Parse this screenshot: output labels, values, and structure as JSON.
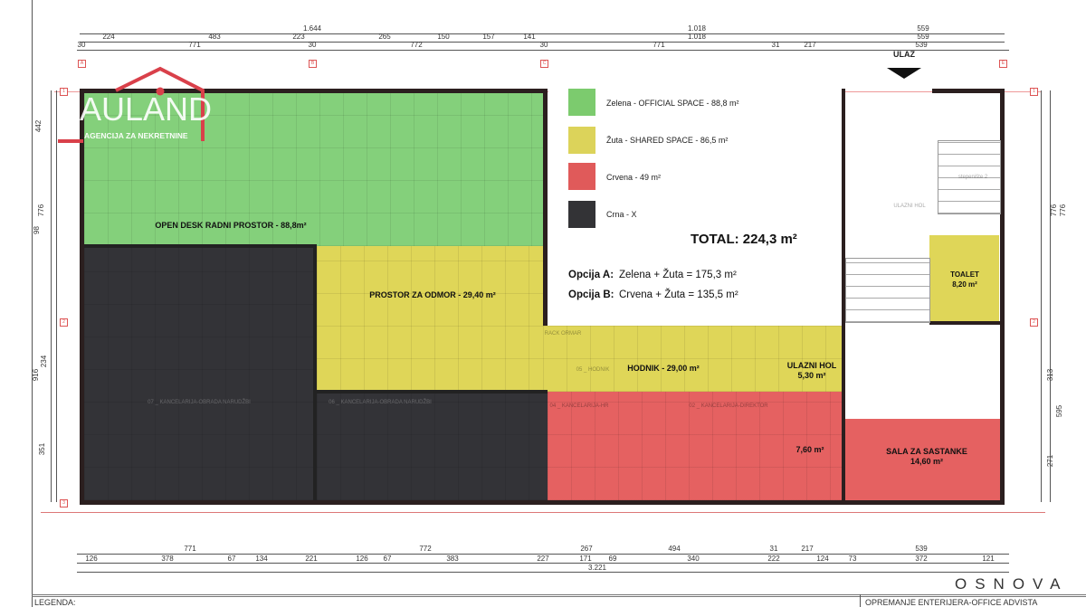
{
  "logo": {
    "name": "AULAND",
    "tagline": "AGENCIJA ZA NEKRETNINE"
  },
  "entrance": {
    "label": "ULAZ"
  },
  "legend": {
    "items": [
      {
        "color": "#7ccb6e",
        "label": "Zelena - OFFICIAL SPACE - 88,8 m²"
      },
      {
        "color": "#dcd35a",
        "label": "Žuta - SHARED SPACE - 86,5 m²"
      },
      {
        "color": "#e05a5a",
        "label": "Crvena - 49 m²"
      },
      {
        "color": "#333336",
        "label": "Crna - X"
      }
    ],
    "total": "TOTAL: 224,3 m²",
    "options": [
      {
        "name": "Opcija A:",
        "formula": "Zelena + Žuta = 175,3 m²"
      },
      {
        "name": "Opcija B:",
        "formula": "Crvena + Žuta = 135,5 m²"
      }
    ]
  },
  "rooms": {
    "open_desk": "OPEN DESK RADNI PROSTOR - 88,8m²",
    "odmor": "PROSTOR ZA ODMOR - 29,40 m²",
    "hodnik": "HODNIK - 29,00 m²",
    "ulazni_hol": "ULAZNI HOL",
    "ulazni_hol_area": "5,30 m²",
    "room_760": "7,60 m²",
    "sala": "SALA ZA SASTANKE",
    "sala_area": "14,60 m²",
    "toalet": "TOALET",
    "toalet_area": "8,20 m²"
  },
  "faint_labels": {
    "k07": "07 _ KANCELARIJA-OBRADA NARUDŽBI",
    "k06": "06 _ KANCELARIJA-OBRADA NARUDŽBI",
    "k04": "04 _ KANCELARIJA-HR",
    "k02": "02 _ KANCELARIJA-DIREKTOR",
    "hodnik": "05 _ HODNIK",
    "hol": "ULAZNI HOL",
    "stair": "stepenište 2",
    "rack": "RACK ORMAR"
  },
  "dimensions": {
    "top1": [
      "1.644",
      "1.018",
      "559"
    ],
    "top2": [
      "224",
      "483",
      "223",
      "265",
      "150",
      "157",
      "141",
      "1.018",
      "559"
    ],
    "top3": [
      "30",
      "771",
      "30",
      "772",
      "30",
      "771",
      "31",
      "217",
      "539"
    ],
    "bottom1": [
      "771",
      "772",
      "267",
      "494",
      "31",
      "217",
      "539"
    ],
    "bottom2": [
      "126",
      "378",
      "67",
      "134",
      "221",
      "126",
      "67",
      "383",
      "227",
      "171",
      "69",
      "340",
      "222",
      "124",
      "73",
      "372",
      "121"
    ],
    "bottom3": [
      "3.221"
    ],
    "left": [
      "442",
      "776",
      "98",
      "916",
      "234",
      "351"
    ],
    "right": [
      "776",
      "776",
      "313",
      "595",
      "271"
    ]
  },
  "sheet": {
    "plan_title": "OSNOVA",
    "legend_label": "LEGENDA:",
    "project": "OPREMANJE ENTERIJERA-OFFICE ADVISTA"
  }
}
